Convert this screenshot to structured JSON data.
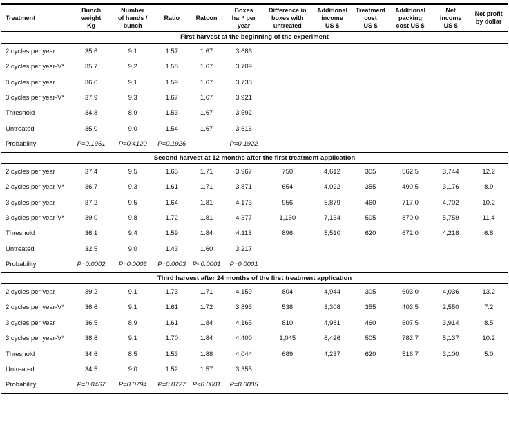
{
  "table": {
    "columns": [
      "Treatment",
      "Bunch\nweight\nKg",
      "Number\nof hands /\nbunch",
      "Ratio",
      "Ratoon",
      "Boxes\nha⁻¹ per\nyear",
      "Difference in\nboxes with\nuntreated",
      "Additional\nincome\nUS $",
      "Treatment\ncost\nUS $",
      "Additional\npacking\ncost US $",
      "Net\nincome\nUS $",
      "Net profit\nby dollar"
    ],
    "sections": [
      {
        "title": "First harvest at the beginning of the experiment",
        "rows": [
          [
            "2 cycles per year",
            "35.6",
            "9.1",
            "1.57",
            "1.67",
            "3,686",
            "",
            "",
            "",
            "",
            "",
            ""
          ],
          [
            "2 cycles per year-V*",
            "35.7",
            "9.2",
            "1.58",
            "1.67",
            "3,709",
            "",
            "",
            "",
            "",
            "",
            ""
          ],
          [
            "3 cycles per year",
            "36.0",
            "9.1",
            "1.59",
            "1.67",
            "3,733",
            "",
            "",
            "",
            "",
            "",
            ""
          ],
          [
            "3 cycles per year-V*",
            "37.9",
            "9.3",
            "1.67",
            "1.67",
            "3,921",
            "",
            "",
            "",
            "",
            "",
            ""
          ],
          [
            "Threshold",
            "34.8",
            "8.9",
            "1.53",
            "1.67",
            "3,592",
            "",
            "",
            "",
            "",
            "",
            ""
          ],
          [
            "Untreated",
            "35.0",
            "9.0",
            "1.54",
            "1.67",
            "3,616",
            "",
            "",
            "",
            "",
            "",
            ""
          ],
          [
            "Probability",
            "P=0.1961",
            "P=0.4120",
            "P=0.1926",
            "",
            "P=0.1922",
            "",
            "",
            "",
            "",
            "",
            ""
          ]
        ]
      },
      {
        "title": "Second harvest at 12 months after the first treatment application",
        "rows": [
          [
            "2 cycles per year",
            "37.4",
            "9.5",
            "1.65",
            "1.71",
            "3.967",
            "750",
            "4,612",
            "305",
            "562.5",
            "3,744",
            "12.2"
          ],
          [
            "2 cycles per year-V*",
            "36.7",
            "9.3",
            "1.61",
            "1.71",
            "3.871",
            "654",
            "4,022",
            "355",
            "490.5",
            "3,176",
            "8.9"
          ],
          [
            "3 cycles per year",
            "37.2",
            "9.5",
            "1.64",
            "1.81",
            "4.173",
            "956",
            "5,879",
            "460",
            "717.0",
            "4,702",
            "10.2"
          ],
          [
            "3 cycles per year-V*",
            "39.0",
            "9.8",
            "1.72",
            "1.81",
            "4.377",
            "1,160",
            "7,134",
            "505",
            "870.0",
            "5,759",
            "11.4"
          ],
          [
            "Threshold",
            "36.1",
            "9.4",
            "1.59",
            "1.84",
            "4.113",
            "896",
            "5,510",
            "620",
            "672.0",
            "4,218",
            "6.8"
          ],
          [
            "Untreated",
            "32.5",
            "9.0",
            "1.43",
            "1.60",
            "3.217",
            "",
            "",
            "",
            "",
            "",
            ""
          ],
          [
            "Probability",
            "P=0.0002",
            "P=0.0003",
            "P=0.0003",
            "P<0.0001",
            "P=0.0001",
            "",
            "",
            "",
            "",
            "",
            ""
          ]
        ]
      },
      {
        "title": "Third harvest after 24 months of the first treatment application",
        "rows": [
          [
            "2 cycles per year",
            "39.2",
            "9.1",
            "1.73",
            "1.71",
            "4,159",
            "804",
            "4,944",
            "305",
            "603.0",
            "4,036",
            "13.2"
          ],
          [
            "2 cycles per year-V*",
            "36.6",
            "9.1",
            "1.61",
            "1.72",
            "3,893",
            "538",
            "3,308",
            "355",
            "403.5",
            "2,550",
            "7.2"
          ],
          [
            "3 cycles per year",
            "36.5",
            "8.9",
            "1.61",
            "1.84",
            "4,165",
            "810",
            "4,981",
            "460",
            "607.5",
            "3,914",
            "8.5"
          ],
          [
            "3 cycles per year-V*",
            "38.6",
            "9.1",
            "1.70",
            "1.84",
            "4,400",
            "1,045",
            "6,426",
            "505",
            "783.7",
            "5,137",
            "10.2"
          ],
          [
            "Threshold",
            "34.6",
            "8.5",
            "1.53",
            "1.88",
            "4,044",
            "689",
            "4,237",
            "620",
            "516.7",
            "3,100",
            "5.0"
          ],
          [
            "Untreated",
            "34.5",
            "9.0",
            "1.52",
            "1.57",
            "3,355",
            "",
            "",
            "",
            "",
            "",
            ""
          ],
          [
            "Probability",
            "P=0.0467",
            "P=0.0794",
            "P=0.0727",
            "P<0.0001",
            "P=0.0005",
            "",
            "",
            "",
            "",
            "",
            ""
          ]
        ]
      }
    ]
  }
}
